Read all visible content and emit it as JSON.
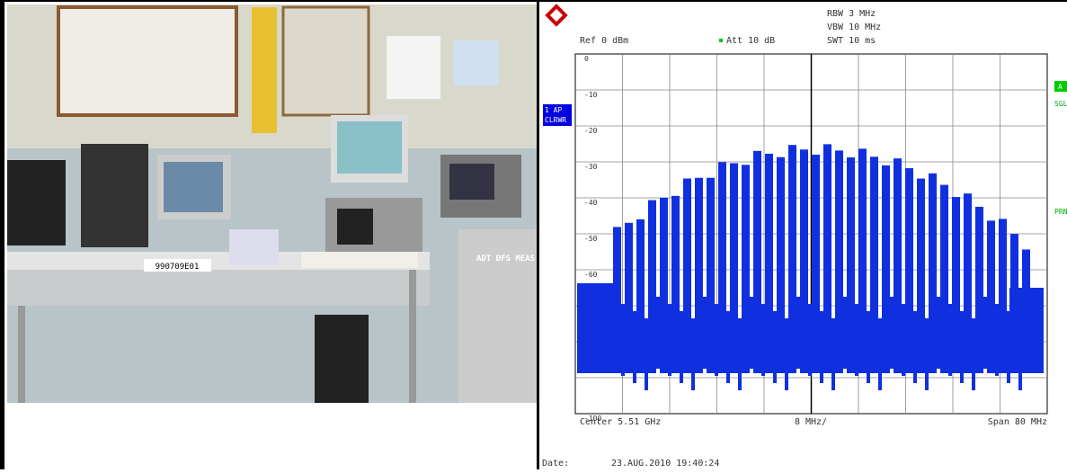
{
  "photo": {
    "labels": [
      "990709E01",
      "ADT DFS MEAS"
    ]
  },
  "analyzer": {
    "header": {
      "rbw": "RBW 3 MHz",
      "vbw": "VBW 10 MHz",
      "ref": "Ref  0 dBm",
      "att": "Att  10 dB",
      "swt": "SWT 10 ms"
    },
    "trace": {
      "number": "1 AP",
      "mode": "CLRWR"
    },
    "side": {
      "a": "A",
      "sgl": "SGL",
      "prn": "PRN"
    },
    "y_labels": [
      "0",
      "-10",
      "-20",
      "-30",
      "-40",
      "-50",
      "-60",
      "-100"
    ],
    "footer": {
      "center": "Center 5.51 GHz",
      "div": "8 MHz/",
      "span": "Span 80 MHz"
    },
    "date_label": "Date:",
    "date": "23.AUG.2010  19:40:24"
  }
}
